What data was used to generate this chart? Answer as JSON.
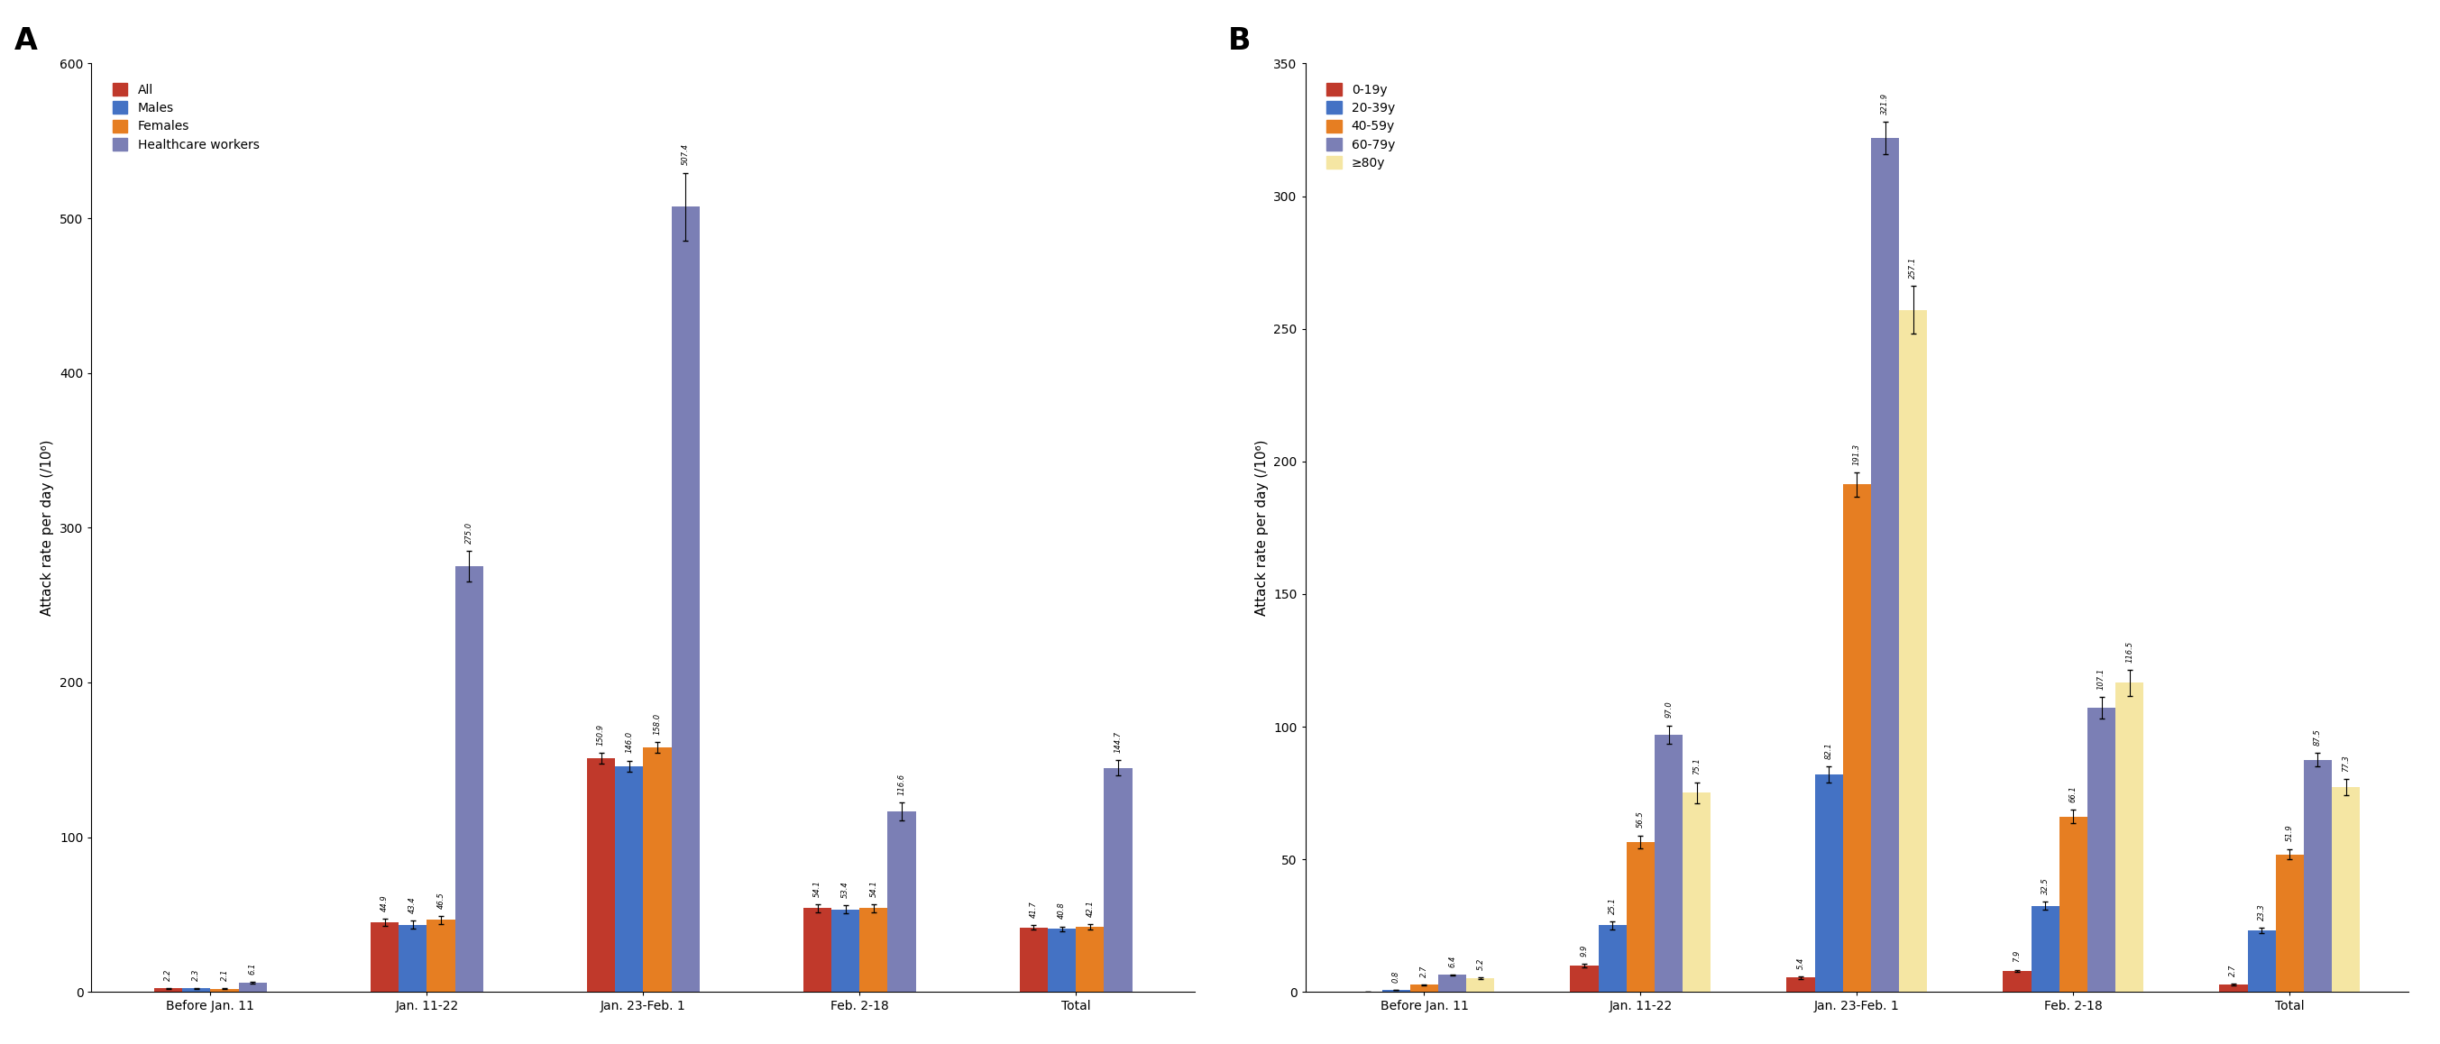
{
  "panel_A": {
    "title": "A",
    "ylabel": "Attack rate per day (/10⁶)",
    "ylim": [
      0,
      600
    ],
    "yticks": [
      0,
      100,
      200,
      300,
      400,
      500,
      600
    ],
    "categories": [
      "Before Jan. 11",
      "Jan. 11-22",
      "Jan. 23-Feb. 1",
      "Feb. 2-18",
      "Total"
    ],
    "series": [
      {
        "label": "All",
        "color": "#c0392b",
        "values": [
          2.2,
          44.9,
          150.9,
          54.1,
          41.7
        ],
        "errors": [
          0.2,
          2.5,
          3.5,
          2.5,
          1.5
        ]
      },
      {
        "label": "Males",
        "color": "#4472c4",
        "values": [
          2.3,
          43.4,
          146.0,
          53.4,
          40.8
        ],
        "errors": [
          0.2,
          2.5,
          3.5,
          2.5,
          1.5
        ]
      },
      {
        "label": "Females",
        "color": "#e67e22",
        "values": [
          2.1,
          46.5,
          158.0,
          54.1,
          42.1
        ],
        "errors": [
          0.2,
          2.5,
          3.5,
          2.5,
          1.5
        ]
      },
      {
        "label": "Healthcare workers",
        "color": "#7b7fb5",
        "values": [
          6.1,
          275.0,
          507.4,
          116.6,
          144.7
        ],
        "errors": [
          0.5,
          10.0,
          22.0,
          6.0,
          5.0
        ]
      }
    ]
  },
  "panel_B": {
    "title": "B",
    "ylabel": "Attack rate per day (/10⁶)",
    "ylim": [
      0,
      350
    ],
    "yticks": [
      0,
      50,
      100,
      150,
      200,
      250,
      300,
      350
    ],
    "categories": [
      "Before Jan. 11",
      "Jan. 11-22",
      "Jan. 23-Feb. 1",
      "Feb. 2-18",
      "Total"
    ],
    "series": [
      {
        "label": "0-19y",
        "color": "#c0392b",
        "values": [
          0.0,
          9.9,
          5.4,
          7.9,
          2.7
        ],
        "errors": [
          0.05,
          0.8,
          0.5,
          0.5,
          0.3
        ]
      },
      {
        "label": "20-39y",
        "color": "#4472c4",
        "values": [
          0.8,
          25.1,
          82.1,
          32.5,
          23.3
        ],
        "errors": [
          0.05,
          1.5,
          3.0,
          1.5,
          1.0
        ]
      },
      {
        "label": "40-59y",
        "color": "#e67e22",
        "values": [
          2.7,
          56.5,
          191.3,
          66.1,
          51.9
        ],
        "errors": [
          0.1,
          2.5,
          4.5,
          2.5,
          2.0
        ]
      },
      {
        "label": "60-79y",
        "color": "#7b7fb5",
        "values": [
          6.4,
          97.0,
          321.9,
          107.1,
          87.5
        ],
        "errors": [
          0.2,
          3.5,
          6.0,
          4.0,
          2.5
        ]
      },
      {
        "label": "≥80y",
        "color": "#f5e6a3",
        "values": [
          5.2,
          75.1,
          257.1,
          116.5,
          77.3
        ],
        "errors": [
          0.4,
          4.0,
          9.0,
          5.0,
          3.0
        ]
      }
    ]
  },
  "bar_width": 0.13,
  "annotation_fontsize": 6.0,
  "label_fontsize": 11,
  "tick_fontsize": 10,
  "legend_fontsize": 10
}
